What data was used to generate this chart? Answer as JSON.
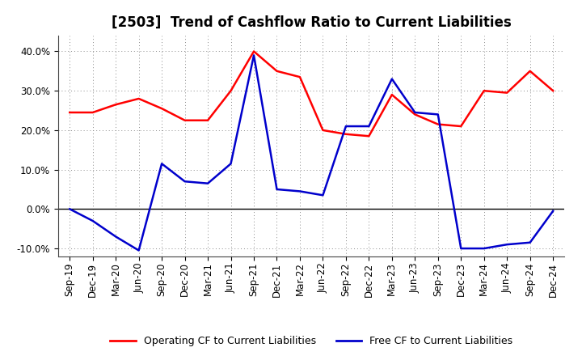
{
  "title": "[2503]  Trend of Cashflow Ratio to Current Liabilities",
  "x_labels": [
    "Sep-19",
    "Dec-19",
    "Mar-20",
    "Jun-20",
    "Sep-20",
    "Dec-20",
    "Mar-21",
    "Jun-21",
    "Sep-21",
    "Dec-21",
    "Mar-22",
    "Jun-22",
    "Sep-22",
    "Dec-22",
    "Mar-23",
    "Jun-23",
    "Sep-23",
    "Dec-23",
    "Mar-24",
    "Jun-24",
    "Sep-24",
    "Dec-24"
  ],
  "operating_cf": [
    24.5,
    24.5,
    26.5,
    28.0,
    25.5,
    22.5,
    22.5,
    30.0,
    40.0,
    35.0,
    33.5,
    20.0,
    19.0,
    18.5,
    29.0,
    24.0,
    21.5,
    21.0,
    30.0,
    29.5,
    35.0,
    30.0
  ],
  "free_cf": [
    0.0,
    -3.0,
    -7.0,
    -10.5,
    11.5,
    7.0,
    6.5,
    11.5,
    39.0,
    5.0,
    4.5,
    3.5,
    21.0,
    21.0,
    33.0,
    24.5,
    24.0,
    -10.0,
    -10.0,
    -9.0,
    -8.5,
    -0.5
  ],
  "operating_cf_color": "#FF0000",
  "free_cf_color": "#0000CC",
  "ylim": [
    -12,
    44
  ],
  "yticks": [
    -10.0,
    0.0,
    10.0,
    20.0,
    30.0,
    40.0
  ],
  "background_color": "#FFFFFF",
  "plot_bg_color": "#FFFFFF",
  "grid_color": "#888888",
  "title_fontsize": 12,
  "legend_fontsize": 9,
  "tick_fontsize": 8.5
}
